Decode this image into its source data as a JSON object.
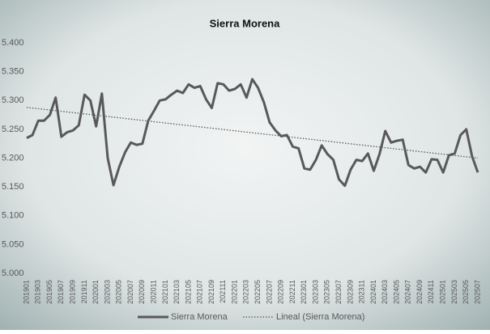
{
  "chart_data": {
    "type": "line",
    "title": "Sierra Morena",
    "categories": [
      "201901",
      null,
      "201903",
      null,
      "201905",
      null,
      "201907",
      null,
      "201909",
      null,
      "201911",
      null,
      "202001",
      null,
      "202003",
      null,
      "202005",
      null,
      "202007",
      null,
      "202009",
      null,
      "202011",
      null,
      "202101",
      null,
      "202103",
      null,
      "202105",
      null,
      "202107",
      null,
      "202109",
      null,
      "202111",
      null,
      "202201",
      null,
      "202203",
      null,
      "202205",
      null,
      "202207",
      null,
      "202209",
      null,
      "202211",
      null,
      "202301",
      null,
      "202303",
      null,
      "202305",
      null,
      "202307",
      null,
      "202309",
      null,
      "202311",
      null,
      "202401",
      null,
      "202403",
      null,
      "202405",
      null,
      "202407",
      null,
      "202409",
      null,
      "202411",
      null,
      "202501",
      null,
      "202503",
      null,
      "202505",
      null,
      "202507"
    ],
    "series": [
      {
        "name": "Sierra Morena",
        "color": "#595959",
        "values": [
          5235,
          5240,
          5265,
          5265,
          5275,
          5305,
          5237,
          5245,
          5248,
          5257,
          5310,
          5300,
          5255,
          5312,
          5200,
          5153,
          5185,
          5210,
          5227,
          5223,
          5225,
          5265,
          5282,
          5300,
          5302,
          5310,
          5317,
          5313,
          5328,
          5322,
          5325,
          5302,
          5287,
          5330,
          5328,
          5317,
          5320,
          5328,
          5305,
          5337,
          5322,
          5297,
          5262,
          5248,
          5238,
          5240,
          5220,
          5217,
          5182,
          5180,
          5197,
          5222,
          5207,
          5197,
          5163,
          5152,
          5180,
          5197,
          5195,
          5208,
          5178,
          5207,
          5247,
          5227,
          5230,
          5232,
          5188,
          5182,
          5185,
          5175,
          5198,
          5197,
          5175,
          5205,
          5208,
          5240,
          5250,
          5203,
          5175
        ]
      }
    ],
    "trendline": {
      "name": "Lineal (Sierra Morena)",
      "color": "#595959",
      "start": 5288,
      "end": 5200
    },
    "ylim": [
      5000,
      5400
    ],
    "yticks": [
      {
        "value": 5000,
        "label": "5.000"
      },
      {
        "value": 5050,
        "label": "5.050"
      },
      {
        "value": 5100,
        "label": "5.100"
      },
      {
        "value": 5150,
        "label": "5.150"
      },
      {
        "value": 5200,
        "label": "5.200"
      },
      {
        "value": 5250,
        "label": "5.250"
      },
      {
        "value": 5300,
        "label": "5.300"
      },
      {
        "value": 5350,
        "label": "5.350"
      },
      {
        "value": 5400,
        "label": "5.400"
      }
    ],
    "legend": "bottom"
  }
}
